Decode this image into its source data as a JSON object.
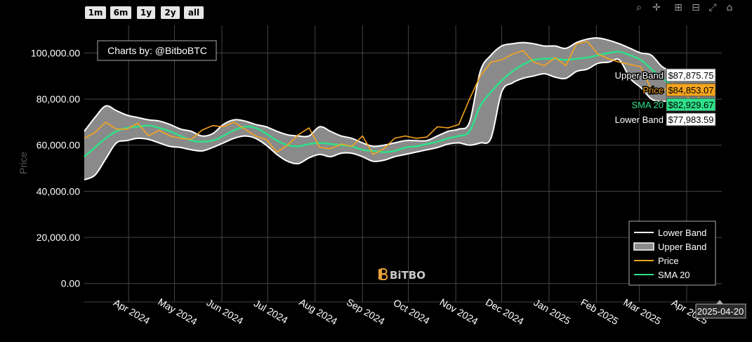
{
  "range_buttons": [
    "1m",
    "6m",
    "1y",
    "2y",
    "all"
  ],
  "toolbar": [
    "zoom-icon",
    "pan-icon",
    "zoom-in-icon",
    "zoom-out-icon",
    "autoscale-icon",
    "reset-axes-icon"
  ],
  "colors": {
    "background": "#000000",
    "price": "#f7a51c",
    "sma": "#2ee08a",
    "band": "#ffffff",
    "band_fill": "#8a8a8a",
    "grid": "#444444"
  },
  "chart_data": {
    "type": "line",
    "attribution": "Charts by: @BitboBTC",
    "watermark": "BiTBO",
    "ylabel": "Price",
    "ylim": [
      -8000,
      112000
    ],
    "xlim": [
      "2024-03-03",
      "2025-04-24"
    ],
    "y_ticks": [
      0,
      20000,
      40000,
      60000,
      80000,
      100000
    ],
    "y_tick_labels": [
      "0.00",
      "20,000.00",
      "40,000.00",
      "60,000.00",
      "80,000.00",
      "100,000.00"
    ],
    "x_ticks": [
      "2024-04-01",
      "2024-05-01",
      "2024-06-01",
      "2024-07-01",
      "2024-08-01",
      "2024-09-01",
      "2024-10-01",
      "2024-11-01",
      "2024-12-01",
      "2025-01-01",
      "2025-02-01",
      "2025-03-01",
      "2025-04-01"
    ],
    "x_tick_labels": [
      "Apr 2024",
      "May 2024",
      "Jun 2024",
      "Jul 2024",
      "Aug 2024",
      "Sep 2024",
      "Oct 2024",
      "Nov 2024",
      "Dec 2024",
      "Jan 2025",
      "Feb 2025",
      "Mar 2025",
      "Apr 2025"
    ],
    "legend": {
      "position": "bottom-right",
      "items": [
        {
          "name": "Lower Band",
          "style": "line-white"
        },
        {
          "name": "Upper Band",
          "style": "fill-gray"
        },
        {
          "name": "Price",
          "style": "line-orange"
        },
        {
          "name": "SMA 20",
          "style": "line-green"
        }
      ]
    },
    "hover": {
      "date": "2025-04-20",
      "labels": [
        {
          "name": "Upper Band",
          "value": "$87,875.75"
        },
        {
          "name": "Price",
          "value": "$84,853.07"
        },
        {
          "name": "SMA 20",
          "value": "$82,929.67"
        },
        {
          "name": "Lower Band",
          "value": "$77,983.59"
        }
      ]
    },
    "dates": [
      "2024-03-03",
      "2024-03-10",
      "2024-03-17",
      "2024-03-24",
      "2024-03-31",
      "2024-04-07",
      "2024-04-14",
      "2024-04-21",
      "2024-04-28",
      "2024-05-05",
      "2024-05-12",
      "2024-05-19",
      "2024-05-26",
      "2024-06-02",
      "2024-06-09",
      "2024-06-16",
      "2024-06-23",
      "2024-06-30",
      "2024-07-07",
      "2024-07-14",
      "2024-07-21",
      "2024-07-28",
      "2024-08-04",
      "2024-08-11",
      "2024-08-18",
      "2024-08-25",
      "2024-09-01",
      "2024-09-08",
      "2024-09-15",
      "2024-09-22",
      "2024-09-29",
      "2024-10-06",
      "2024-10-13",
      "2024-10-20",
      "2024-10-27",
      "2024-11-03",
      "2024-11-10",
      "2024-11-17",
      "2024-11-24",
      "2024-12-01",
      "2024-12-08",
      "2024-12-15",
      "2024-12-22",
      "2024-12-29",
      "2025-01-05",
      "2025-01-12",
      "2025-01-19",
      "2025-01-26",
      "2025-02-02",
      "2025-02-09",
      "2025-02-16",
      "2025-02-23",
      "2025-03-02",
      "2025-03-09",
      "2025-03-16",
      "2025-03-23",
      "2025-03-30",
      "2025-04-06",
      "2025-04-13",
      "2025-04-20"
    ],
    "series": [
      {
        "name": "Upper Band",
        "values": [
          66000,
          72000,
          77000,
          75000,
          73000,
          72000,
          71000,
          70500,
          69000,
          67000,
          66000,
          64000,
          65000,
          69000,
          71000,
          70500,
          69000,
          68000,
          66000,
          64500,
          64000,
          64000,
          68000,
          66000,
          64000,
          63000,
          61000,
          59500,
          60000,
          61000,
          62000,
          62000,
          62000,
          64000,
          66000,
          67000,
          70000,
          92000,
          99000,
          103000,
          104000,
          104500,
          104000,
          103000,
          103000,
          102000,
          104500,
          106000,
          106500,
          105500,
          104000,
          102000,
          100000,
          99000,
          94000,
          92000,
          91000,
          89000,
          88000,
          87875.75
        ]
      },
      {
        "name": "Lower Band",
        "values": [
          45000,
          47000,
          54000,
          61000,
          62000,
          63000,
          62500,
          61000,
          59500,
          59000,
          58000,
          57500,
          59000,
          61000,
          63000,
          64000,
          63000,
          60000,
          56000,
          53000,
          52000,
          54500,
          56000,
          55000,
          56500,
          56500,
          55000,
          53000,
          53500,
          55000,
          56000,
          57000,
          58000,
          59000,
          60500,
          61000,
          60000,
          61000,
          63000,
          83000,
          87000,
          89000,
          90000,
          91000,
          89500,
          89000,
          92000,
          93000,
          95500,
          96000,
          97000,
          89000,
          85000,
          80000,
          79000,
          79500,
          79000,
          78500,
          78000,
          77983.59
        ]
      },
      {
        "name": "SMA 20",
        "values": [
          55000,
          59000,
          63000,
          66000,
          67500,
          68000,
          68500,
          67500,
          66000,
          64000,
          62000,
          61500,
          62000,
          64000,
          66500,
          68000,
          67500,
          65000,
          62000,
          60000,
          59500,
          60500,
          61000,
          60500,
          60000,
          59500,
          58000,
          57500,
          57000,
          57500,
          59000,
          59500,
          60500,
          61500,
          63000,
          64000,
          66000,
          77000,
          83000,
          88000,
          92000,
          95000,
          97000,
          97500,
          97500,
          97000,
          97500,
          98000,
          99000,
          100000,
          100500,
          99000,
          97000,
          93000,
          89000,
          86000,
          85000,
          84000,
          83300,
          82929.67
        ]
      },
      {
        "name": "Price",
        "values": [
          63000,
          65500,
          70000,
          67000,
          67000,
          69500,
          64000,
          66500,
          64000,
          63000,
          62500,
          66500,
          68500,
          68000,
          70000,
          67000,
          64000,
          62500,
          57000,
          60000,
          64500,
          67500,
          59000,
          58500,
          60500,
          59500,
          64000,
          56000,
          58500,
          63000,
          64000,
          63000,
          63500,
          68000,
          67500,
          69000,
          80000,
          90000,
          96000,
          97000,
          99500,
          101000,
          96000,
          94500,
          98000,
          94500,
          104000,
          105000,
          99500,
          97500,
          96000,
          95000,
          94000,
          84000,
          83000,
          87000,
          82500,
          78500,
          84000,
          84853.07
        ]
      }
    ]
  }
}
